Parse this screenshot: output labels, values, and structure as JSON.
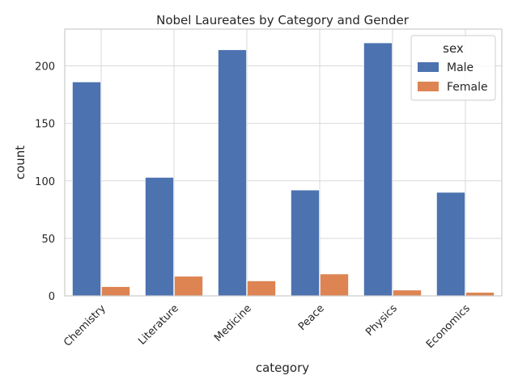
{
  "chart_data": {
    "type": "bar",
    "title": "Nobel Laureates by Category and Gender",
    "xlabel": "category",
    "ylabel": "count",
    "categories": [
      "Chemistry",
      "Literature",
      "Medicine",
      "Peace",
      "Physics",
      "Economics"
    ],
    "series": [
      {
        "name": "Male",
        "color": "#4c72b0",
        "values": [
          186,
          103,
          214,
          92,
          220,
          90
        ]
      },
      {
        "name": "Female",
        "color": "#dd8452",
        "values": [
          8,
          17,
          13,
          19,
          5,
          3
        ]
      }
    ],
    "ylim": [
      0,
      232
    ],
    "yticks": [
      0,
      50,
      100,
      150,
      200
    ],
    "grid": true,
    "legend": {
      "title": "sex",
      "position": "top-right"
    }
  }
}
